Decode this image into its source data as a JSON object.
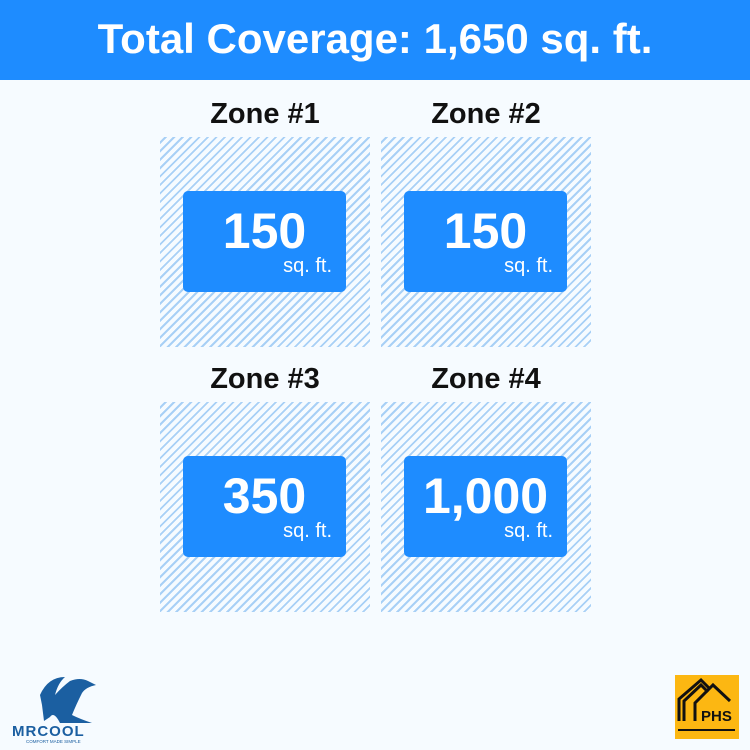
{
  "header": {
    "title": "Total Coverage: 1,650 sq. ft."
  },
  "zones": [
    {
      "label": "Zone #1",
      "value": "150",
      "unit": "sq. ft."
    },
    {
      "label": "Zone #2",
      "value": "150",
      "unit": "sq. ft."
    },
    {
      "label": "Zone #3",
      "value": "350",
      "unit": "sq. ft."
    },
    {
      "label": "Zone #4",
      "value": "1,000",
      "unit": "sq. ft."
    }
  ],
  "logos": {
    "mrcool": "MRCOOL",
    "mrcool_tagline": "COMFORT MADE SIMPLE",
    "phs": "PHS"
  },
  "colors": {
    "accent": "#1e8cff",
    "hatch": "#a8d0f6",
    "phs_bg": "#fcb712"
  }
}
